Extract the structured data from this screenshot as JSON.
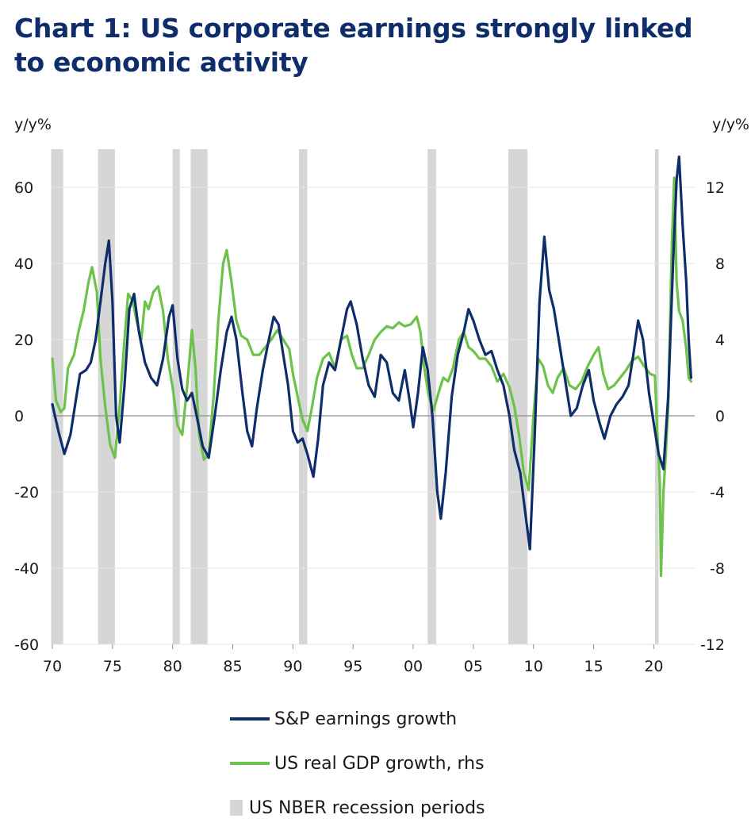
{
  "title": "Chart 1: US corporate earnings strongly linked to economic activity",
  "chart_data": {
    "type": "line",
    "left_axis": {
      "unit_label": "y/y%",
      "ylim": [
        -60,
        70
      ],
      "ticks": [
        -60,
        -40,
        -20,
        0,
        20,
        40,
        60
      ]
    },
    "right_axis": {
      "unit_label": "y/y%",
      "ylim": [
        -12,
        14
      ],
      "ticks": [
        -12,
        -8,
        -4,
        0,
        4,
        8,
        12
      ]
    },
    "x_axis": {
      "xlim": [
        1970,
        2023.4
      ],
      "ticks": [
        1970,
        1975,
        1980,
        1985,
        1990,
        1995,
        2000,
        2005,
        2010,
        2015,
        2020
      ],
      "tick_labels": [
        "70",
        "75",
        "80",
        "85",
        "90",
        "95",
        "00",
        "05",
        "10",
        "15",
        "20"
      ]
    },
    "grid": "horizontal",
    "legend_placement": "bottom",
    "recessions": [
      {
        "start": 1969.9,
        "end": 1970.9
      },
      {
        "start": 1973.8,
        "end": 1975.2
      },
      {
        "start": 1980.0,
        "end": 1980.6
      },
      {
        "start": 1981.5,
        "end": 1982.9
      },
      {
        "start": 1990.5,
        "end": 1991.2
      },
      {
        "start": 2001.2,
        "end": 2001.9
      },
      {
        "start": 2007.9,
        "end": 2009.5
      },
      {
        "start": 2020.1,
        "end": 2020.4
      }
    ],
    "series": [
      {
        "name": "S&P earnings growth",
        "axis": "left",
        "color": "#0f2d6b",
        "points": [
          [
            1970.0,
            3
          ],
          [
            1970.5,
            -4
          ],
          [
            1971.0,
            -10
          ],
          [
            1971.5,
            -5
          ],
          [
            1972.0,
            5
          ],
          [
            1972.3,
            11
          ],
          [
            1972.8,
            12
          ],
          [
            1973.2,
            14
          ],
          [
            1973.6,
            20
          ],
          [
            1974.0,
            30
          ],
          [
            1974.4,
            40
          ],
          [
            1974.7,
            46
          ],
          [
            1975.0,
            30
          ],
          [
            1975.3,
            0
          ],
          [
            1975.6,
            -7
          ],
          [
            1976.0,
            8
          ],
          [
            1976.4,
            28
          ],
          [
            1976.8,
            32
          ],
          [
            1977.2,
            22
          ],
          [
            1977.7,
            14
          ],
          [
            1978.2,
            10
          ],
          [
            1978.7,
            8
          ],
          [
            1979.2,
            15
          ],
          [
            1979.7,
            26
          ],
          [
            1980.0,
            29
          ],
          [
            1980.4,
            15
          ],
          [
            1980.8,
            7
          ],
          [
            1981.2,
            4
          ],
          [
            1981.6,
            6
          ],
          [
            1982.0,
            0
          ],
          [
            1982.5,
            -8
          ],
          [
            1983.0,
            -11
          ],
          [
            1983.5,
            0
          ],
          [
            1984.0,
            12
          ],
          [
            1984.5,
            22
          ],
          [
            1984.9,
            26
          ],
          [
            1985.3,
            20
          ],
          [
            1985.8,
            6
          ],
          [
            1986.2,
            -4
          ],
          [
            1986.6,
            -8
          ],
          [
            1987.0,
            2
          ],
          [
            1987.5,
            12
          ],
          [
            1988.0,
            20
          ],
          [
            1988.4,
            26
          ],
          [
            1988.8,
            24
          ],
          [
            1989.2,
            16
          ],
          [
            1989.6,
            8
          ],
          [
            1990.0,
            -4
          ],
          [
            1990.4,
            -7
          ],
          [
            1990.8,
            -6
          ],
          [
            1991.2,
            -10
          ],
          [
            1991.7,
            -16
          ],
          [
            1992.1,
            -6
          ],
          [
            1992.5,
            8
          ],
          [
            1993.0,
            14
          ],
          [
            1993.5,
            12
          ],
          [
            1994.0,
            20
          ],
          [
            1994.5,
            28
          ],
          [
            1994.8,
            30
          ],
          [
            1995.3,
            24
          ],
          [
            1995.8,
            15
          ],
          [
            1996.3,
            8
          ],
          [
            1996.8,
            5
          ],
          [
            1997.3,
            16
          ],
          [
            1997.8,
            14
          ],
          [
            1998.3,
            6
          ],
          [
            1998.8,
            4
          ],
          [
            1999.3,
            12
          ],
          [
            1999.7,
            4
          ],
          [
            2000.0,
            -3
          ],
          [
            2000.4,
            6
          ],
          [
            2000.8,
            18
          ],
          [
            2001.2,
            12
          ],
          [
            2001.6,
            0
          ],
          [
            2002.0,
            -20
          ],
          [
            2002.3,
            -27
          ],
          [
            2002.7,
            -15
          ],
          [
            2003.2,
            5
          ],
          [
            2003.7,
            16
          ],
          [
            2004.2,
            22
          ],
          [
            2004.6,
            28
          ],
          [
            2005.0,
            25
          ],
          [
            2005.5,
            20
          ],
          [
            2006.0,
            16
          ],
          [
            2006.5,
            17
          ],
          [
            2007.0,
            12
          ],
          [
            2007.5,
            8
          ],
          [
            2008.0,
            0
          ],
          [
            2008.4,
            -9
          ],
          [
            2008.9,
            -15
          ],
          [
            2009.3,
            -25
          ],
          [
            2009.7,
            -35
          ],
          [
            2010.1,
            -5
          ],
          [
            2010.5,
            30
          ],
          [
            2010.9,
            47
          ],
          [
            2011.3,
            33
          ],
          [
            2011.7,
            28
          ],
          [
            2012.2,
            18
          ],
          [
            2012.7,
            8
          ],
          [
            2013.1,
            0
          ],
          [
            2013.6,
            2
          ],
          [
            2014.1,
            8
          ],
          [
            2014.6,
            12
          ],
          [
            2015.0,
            4
          ],
          [
            2015.5,
            -2
          ],
          [
            2015.9,
            -6
          ],
          [
            2016.4,
            0
          ],
          [
            2016.9,
            3
          ],
          [
            2017.4,
            5
          ],
          [
            2017.9,
            8
          ],
          [
            2018.3,
            16
          ],
          [
            2018.7,
            25
          ],
          [
            2019.1,
            20
          ],
          [
            2019.6,
            6
          ],
          [
            2020.0,
            -2
          ],
          [
            2020.4,
            -10
          ],
          [
            2020.8,
            -14
          ],
          [
            2021.2,
            5
          ],
          [
            2021.6,
            40
          ],
          [
            2021.9,
            62
          ],
          [
            2022.1,
            68
          ],
          [
            2022.4,
            50
          ],
          [
            2022.7,
            35
          ],
          [
            2022.9,
            20
          ],
          [
            2023.1,
            10
          ]
        ]
      },
      {
        "name": "US real GDP growth, rhs",
        "axis": "right",
        "color": "#6cc24a",
        "points": [
          [
            1970.0,
            3.0
          ],
          [
            1970.3,
            0.8
          ],
          [
            1970.7,
            0.2
          ],
          [
            1971.0,
            0.4
          ],
          [
            1971.3,
            2.5
          ],
          [
            1971.8,
            3.2
          ],
          [
            1972.2,
            4.5
          ],
          [
            1972.6,
            5.5
          ],
          [
            1973.0,
            7.0
          ],
          [
            1973.3,
            7.8
          ],
          [
            1973.7,
            6.5
          ],
          [
            1974.0,
            3.0
          ],
          [
            1974.4,
            0.5
          ],
          [
            1974.8,
            -1.5
          ],
          [
            1975.2,
            -2.2
          ],
          [
            1975.6,
            0.5
          ],
          [
            1976.0,
            4.0
          ],
          [
            1976.3,
            6.4
          ],
          [
            1976.7,
            6.0
          ],
          [
            1977.0,
            5.0
          ],
          [
            1977.4,
            4.0
          ],
          [
            1977.7,
            6.0
          ],
          [
            1978.0,
            5.6
          ],
          [
            1978.4,
            6.5
          ],
          [
            1978.8,
            6.8
          ],
          [
            1979.2,
            5.5
          ],
          [
            1979.6,
            3.0
          ],
          [
            1980.0,
            1.5
          ],
          [
            1980.4,
            -0.5
          ],
          [
            1980.8,
            -1.0
          ],
          [
            1981.2,
            1.5
          ],
          [
            1981.6,
            4.5
          ],
          [
            1981.9,
            2.5
          ],
          [
            1982.2,
            -1.0
          ],
          [
            1982.6,
            -2.3
          ],
          [
            1983.0,
            -2.0
          ],
          [
            1983.4,
            1.0
          ],
          [
            1983.8,
            5.0
          ],
          [
            1984.2,
            8.0
          ],
          [
            1984.5,
            8.7
          ],
          [
            1984.9,
            7.0
          ],
          [
            1985.3,
            5.0
          ],
          [
            1985.7,
            4.2
          ],
          [
            1986.2,
            4.0
          ],
          [
            1986.7,
            3.2
          ],
          [
            1987.2,
            3.2
          ],
          [
            1987.7,
            3.6
          ],
          [
            1988.2,
            4.0
          ],
          [
            1988.7,
            4.5
          ],
          [
            1989.2,
            4.0
          ],
          [
            1989.7,
            3.5
          ],
          [
            1990.0,
            2.2
          ],
          [
            1990.4,
            1.0
          ],
          [
            1990.8,
            -0.2
          ],
          [
            1991.2,
            -0.8
          ],
          [
            1991.6,
            0.5
          ],
          [
            1992.0,
            2.0
          ],
          [
            1992.5,
            3.0
          ],
          [
            1993.0,
            3.3
          ],
          [
            1993.5,
            2.5
          ],
          [
            1994.0,
            4.0
          ],
          [
            1994.5,
            4.2
          ],
          [
            1994.9,
            3.2
          ],
          [
            1995.3,
            2.5
          ],
          [
            1995.8,
            2.5
          ],
          [
            1996.3,
            3.2
          ],
          [
            1996.8,
            4.0
          ],
          [
            1997.3,
            4.4
          ],
          [
            1997.8,
            4.7
          ],
          [
            1998.3,
            4.6
          ],
          [
            1998.8,
            4.9
          ],
          [
            1999.3,
            4.7
          ],
          [
            1999.8,
            4.8
          ],
          [
            2000.3,
            5.2
          ],
          [
            2000.6,
            4.4
          ],
          [
            2000.9,
            2.6
          ],
          [
            2001.3,
            1.0
          ],
          [
            2001.7,
            0.3
          ],
          [
            2002.1,
            1.2
          ],
          [
            2002.5,
            2.0
          ],
          [
            2002.9,
            1.8
          ],
          [
            2003.3,
            2.5
          ],
          [
            2003.8,
            4.0
          ],
          [
            2004.2,
            4.4
          ],
          [
            2004.6,
            3.6
          ],
          [
            2005.0,
            3.4
          ],
          [
            2005.5,
            3.0
          ],
          [
            2006.0,
            3.0
          ],
          [
            2006.5,
            2.6
          ],
          [
            2007.0,
            1.8
          ],
          [
            2007.5,
            2.2
          ],
          [
            2008.0,
            1.5
          ],
          [
            2008.4,
            0.5
          ],
          [
            2008.8,
            -1.0
          ],
          [
            2009.2,
            -3.0
          ],
          [
            2009.6,
            -3.9
          ],
          [
            2010.0,
            0.0
          ],
          [
            2010.4,
            3.0
          ],
          [
            2010.8,
            2.6
          ],
          [
            2011.2,
            1.6
          ],
          [
            2011.6,
            1.2
          ],
          [
            2012.0,
            2.0
          ],
          [
            2012.5,
            2.5
          ],
          [
            2013.0,
            1.6
          ],
          [
            2013.5,
            1.4
          ],
          [
            2014.0,
            1.8
          ],
          [
            2014.5,
            2.6
          ],
          [
            2015.0,
            3.2
          ],
          [
            2015.4,
            3.6
          ],
          [
            2015.8,
            2.2
          ],
          [
            2016.2,
            1.4
          ],
          [
            2016.7,
            1.6
          ],
          [
            2017.2,
            2.0
          ],
          [
            2017.7,
            2.4
          ],
          [
            2018.2,
            2.9
          ],
          [
            2018.7,
            3.1
          ],
          [
            2019.2,
            2.6
          ],
          [
            2019.7,
            2.2
          ],
          [
            2020.1,
            2.1
          ],
          [
            2020.3,
            -1.0
          ],
          [
            2020.5,
            -3.5
          ],
          [
            2020.6,
            -8.4
          ],
          [
            2020.8,
            -4.0
          ],
          [
            2021.0,
            -2.0
          ],
          [
            2021.2,
            0.5
          ],
          [
            2021.5,
            9.0
          ],
          [
            2021.7,
            12.5
          ],
          [
            2021.9,
            7.0
          ],
          [
            2022.1,
            5.5
          ],
          [
            2022.4,
            5.0
          ],
          [
            2022.7,
            3.5
          ],
          [
            2022.9,
            2.0
          ],
          [
            2023.1,
            1.8
          ]
        ]
      }
    ],
    "legend": [
      {
        "label": "S&P earnings growth",
        "kind": "line",
        "color": "#0f2d6b"
      },
      {
        "label": "US real GDP growth, rhs",
        "kind": "line",
        "color": "#6cc24a"
      },
      {
        "label": "US NBER recession periods",
        "kind": "box",
        "color": "#d6d6d6"
      }
    ]
  }
}
